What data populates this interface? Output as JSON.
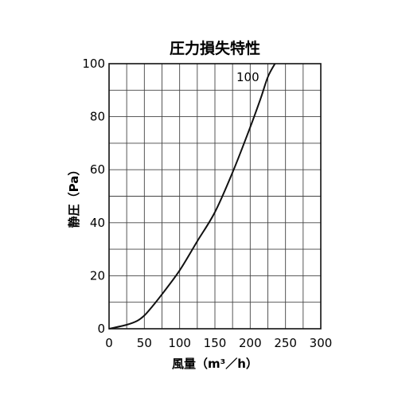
{
  "chart_data": {
    "type": "line",
    "title": "圧力損失特性",
    "xlabel": "風量（m³／h）",
    "ylabel": "静圧（Pa）",
    "xlim": [
      0,
      300
    ],
    "ylim": [
      0,
      100
    ],
    "xticks": [
      "0",
      "50",
      "100",
      "150",
      "200",
      "250",
      "300"
    ],
    "yticks": [
      "0",
      "20",
      "40",
      "60",
      "80",
      "100"
    ],
    "grid": true,
    "series": [
      {
        "name": "100",
        "x": [
          0,
          25,
          40,
          50,
          60,
          75,
          100,
          125,
          150,
          175,
          200,
          215,
          225,
          235
        ],
        "y": [
          0,
          1.5,
          3,
          5,
          8,
          13,
          22,
          33,
          44,
          59,
          76,
          87,
          95,
          100
        ]
      }
    ]
  }
}
